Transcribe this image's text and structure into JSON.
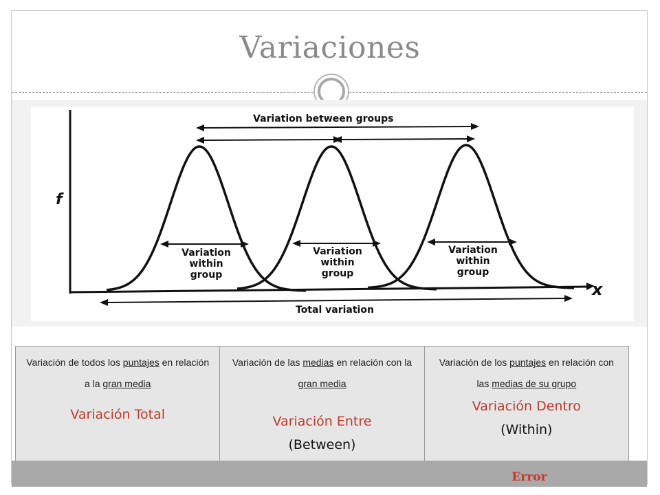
{
  "slide": {
    "title": "Variaciones"
  },
  "figure": {
    "labels": {
      "between": "Variation between groups",
      "within_line1": "Variation",
      "within_line2": "within",
      "within_line3": "group",
      "total": "Total variation",
      "y_axis": "f",
      "x_axis": "x"
    }
  },
  "summary": {
    "columns": [
      {
        "desc_parts": [
          "Variación de todos los ",
          "puntajes",
          " en relación a la ",
          "gran media"
        ],
        "term": "Variación Total",
        "sub": ""
      },
      {
        "desc_parts": [
          "Variación de las ",
          "medias",
          " en relación con la ",
          "gran media"
        ],
        "term": "Variación Entre",
        "sub": "(Between)"
      },
      {
        "desc_parts": [
          "Variación de los ",
          "puntajes",
          " en relación con las ",
          "medias de su grupo"
        ],
        "term": "Variación Dentro",
        "sub": "(Within)"
      }
    ],
    "error_label": "Error"
  },
  "colors": {
    "title": "#8a8a8a",
    "accent_red": "#c0392b",
    "table_bg": "#e6e6e6",
    "bar": "#a9a9a9"
  }
}
